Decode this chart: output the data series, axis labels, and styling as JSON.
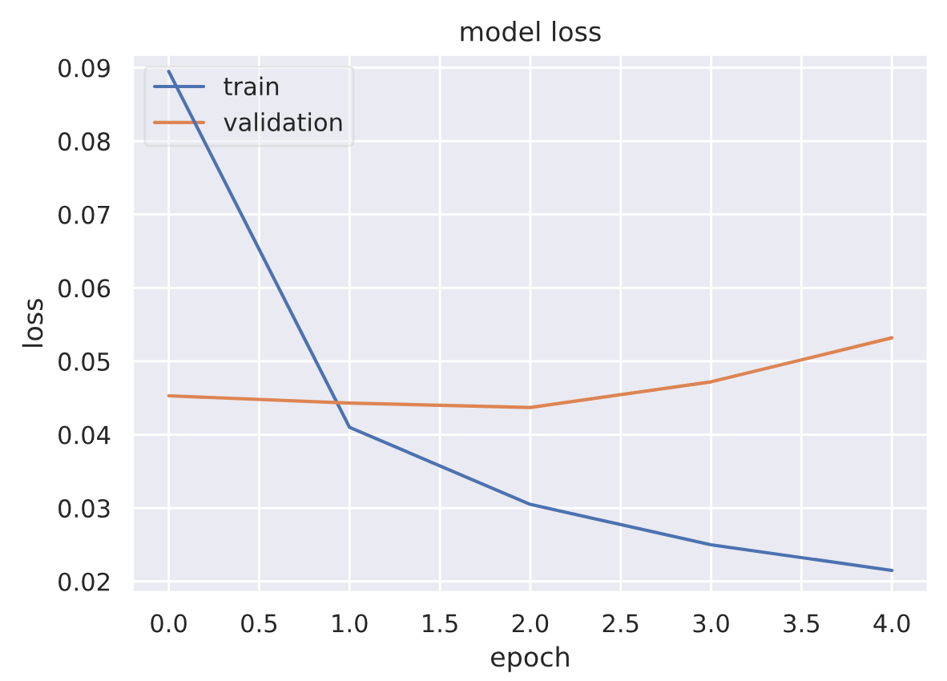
{
  "chart_data": {
    "type": "line",
    "title": "model loss",
    "xlabel": "epoch",
    "ylabel": "loss",
    "x": [
      0,
      1,
      2,
      3,
      4
    ],
    "series": [
      {
        "name": "train",
        "color": "#4c72b0",
        "values": [
          0.0895,
          0.041,
          0.0305,
          0.025,
          0.0215
        ]
      },
      {
        "name": "validation",
        "color": "#dd8452",
        "values": [
          0.0453,
          0.0443,
          0.0437,
          0.0472,
          0.0532
        ]
      }
    ],
    "xlim": [
      -0.2,
      4.2
    ],
    "ylim": [
      0.0185,
      0.0918
    ],
    "xticks": [
      {
        "value": 0,
        "label": "0.0"
      },
      0.5,
      {
        "value": 1,
        "label": "1.0"
      },
      1.5,
      {
        "value": 2,
        "label": "2.0"
      },
      2.5,
      {
        "value": 3,
        "label": "3.0"
      },
      3.5,
      {
        "value": 4,
        "label": "4.0"
      }
    ],
    "yticks": [
      0.02,
      0.03,
      0.04,
      0.05,
      0.06,
      0.07,
      0.08,
      0.09
    ],
    "grid": true,
    "legend": "top left",
    "marker": "none",
    "line_style": "solid"
  }
}
